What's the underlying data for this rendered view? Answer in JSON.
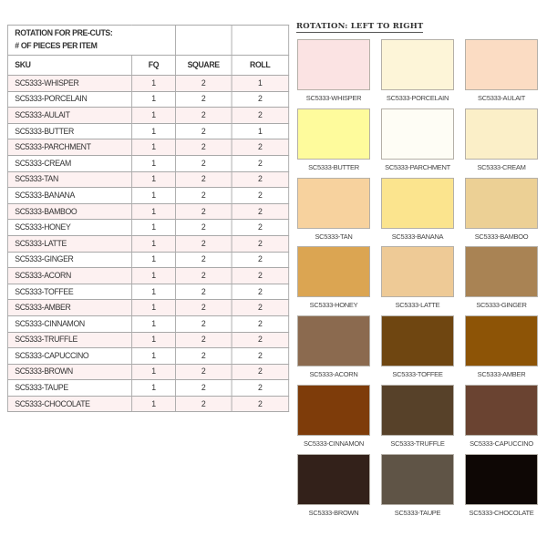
{
  "table": {
    "title_line1": "ROTATION FOR PRE-CUTS:",
    "title_line2": "# OF PIECES PER ITEM",
    "headers": [
      "SKU",
      "FQ",
      "SQUARE",
      "ROLL"
    ],
    "rows": [
      [
        "SC5333-WHISPER",
        "1",
        "2",
        "1"
      ],
      [
        "SC5333-PORCELAIN",
        "1",
        "2",
        "2"
      ],
      [
        "SC5333-AULAIT",
        "1",
        "2",
        "2"
      ],
      [
        "SC5333-BUTTER",
        "1",
        "2",
        "1"
      ],
      [
        "SC5333-PARCHMENT",
        "1",
        "2",
        "2"
      ],
      [
        "SC5333-CREAM",
        "1",
        "2",
        "2"
      ],
      [
        "SC5333-TAN",
        "1",
        "2",
        "2"
      ],
      [
        "SC5333-BANANA",
        "1",
        "2",
        "2"
      ],
      [
        "SC5333-BAMBOO",
        "1",
        "2",
        "2"
      ],
      [
        "SC5333-HONEY",
        "1",
        "2",
        "2"
      ],
      [
        "SC5333-LATTE",
        "1",
        "2",
        "2"
      ],
      [
        "SC5333-GINGER",
        "1",
        "2",
        "2"
      ],
      [
        "SC5333-ACORN",
        "1",
        "2",
        "2"
      ],
      [
        "SC5333-TOFFEE",
        "1",
        "2",
        "2"
      ],
      [
        "SC5333-AMBER",
        "1",
        "2",
        "2"
      ],
      [
        "SC5333-CINNAMON",
        "1",
        "2",
        "2"
      ],
      [
        "SC5333-TRUFFLE",
        "1",
        "2",
        "2"
      ],
      [
        "SC5333-CAPUCCINO",
        "1",
        "2",
        "2"
      ],
      [
        "SC5333-BROWN",
        "1",
        "2",
        "2"
      ],
      [
        "SC5333-TAUPE",
        "1",
        "2",
        "2"
      ],
      [
        "SC5333-CHOCOLATE",
        "1",
        "2",
        "2"
      ]
    ]
  },
  "rotation": {
    "heading": "ROTATION: LEFT TO RIGHT",
    "swatches": [
      {
        "label": "SC5333-WHISPER",
        "color": "#fbe3e3"
      },
      {
        "label": "SC5333-PORCELAIN",
        "color": "#fdf5d8"
      },
      {
        "label": "SC5333-AULAIT",
        "color": "#fbdcc3"
      },
      {
        "label": "SC5333-BUTTER",
        "color": "#fefb9c"
      },
      {
        "label": "SC5333-PARCHMENT",
        "color": "#fefdf5"
      },
      {
        "label": "SC5333-CREAM",
        "color": "#fbefc8"
      },
      {
        "label": "SC5333-TAN",
        "color": "#f7d29e"
      },
      {
        "label": "SC5333-BANANA",
        "color": "#fbe48e"
      },
      {
        "label": "SC5333-BAMBOO",
        "color": "#ecd095"
      },
      {
        "label": "SC5333-HONEY",
        "color": "#dba552"
      },
      {
        "label": "SC5333-LATTE",
        "color": "#eeca96"
      },
      {
        "label": "SC5333-GINGER",
        "color": "#a98354"
      },
      {
        "label": "SC5333-ACORN",
        "color": "#8b6a4f"
      },
      {
        "label": "SC5333-TOFFEE",
        "color": "#6f4611"
      },
      {
        "label": "SC5333-AMBER",
        "color": "#8d5406"
      },
      {
        "label": "SC5333-CINNAMON",
        "color": "#7e3c0a"
      },
      {
        "label": "SC5333-TRUFFLE",
        "color": "#574129"
      },
      {
        "label": "SC5333-CAPUCCINO",
        "color": "#6a4331"
      },
      {
        "label": "SC5333-BROWN",
        "color": "#33211a"
      },
      {
        "label": "SC5333-TAUPE",
        "color": "#5f5446"
      },
      {
        "label": "SC5333-CHOCOLATE",
        "color": "#0e0705"
      }
    ]
  }
}
